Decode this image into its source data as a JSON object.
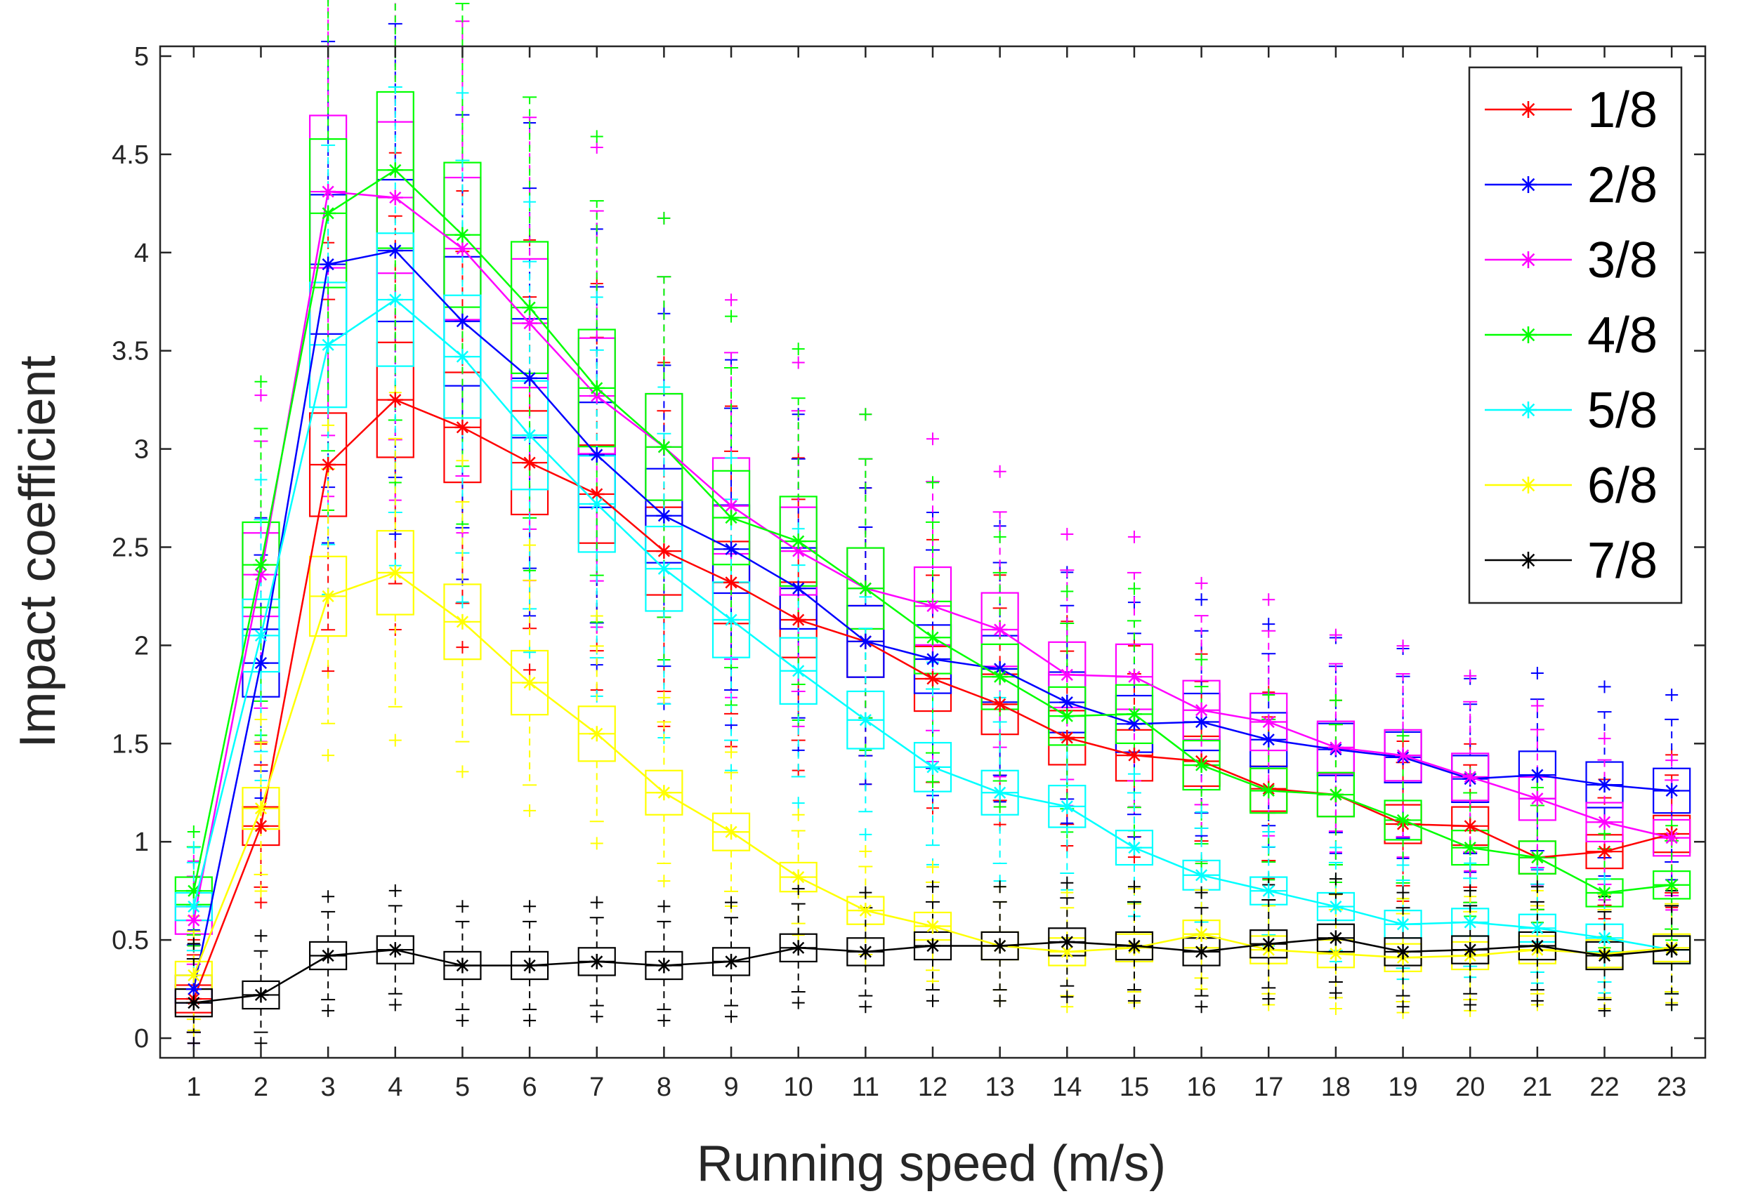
{
  "chart_data": {
    "type": "line",
    "chart_style": "box-plot-overlay",
    "xlabel": "Running speed (m/s)",
    "ylabel": "Impact coefficient",
    "x": [
      1,
      2,
      3,
      4,
      5,
      6,
      7,
      8,
      9,
      10,
      11,
      12,
      13,
      14,
      15,
      16,
      17,
      18,
      19,
      20,
      21,
      22,
      23
    ],
    "xlim": [
      0.5,
      23.5
    ],
    "ylim": [
      -0.1,
      5.05
    ],
    "yticks": [
      0,
      0.5,
      1,
      1.5,
      2,
      2.5,
      3,
      3.5,
      4,
      4.5,
      5
    ],
    "ytick_labels": [
      "0",
      "0.5",
      "1",
      "1.5",
      "2",
      "2.5",
      "3",
      "3.5",
      "4",
      "4.5",
      "5"
    ],
    "xtick_labels": [
      "1",
      "2",
      "3",
      "4",
      "5",
      "6",
      "7",
      "8",
      "9",
      "10",
      "11",
      "12",
      "13",
      "14",
      "15",
      "16",
      "17",
      "18",
      "19",
      "20",
      "21",
      "22",
      "23"
    ],
    "legend_position": "top-right",
    "series": [
      {
        "name": "1/8",
        "color": "#ff0000",
        "values": [
          0.2,
          1.08,
          2.92,
          3.25,
          3.11,
          2.93,
          2.77,
          2.48,
          2.32,
          2.13,
          2.02,
          1.83,
          1.7,
          1.53,
          1.44,
          1.41,
          1.27,
          1.24,
          1.09,
          1.08,
          0.92,
          0.95,
          1.04
        ]
      },
      {
        "name": "2/8",
        "color": "#0000ff",
        "values": [
          0.25,
          1.91,
          3.94,
          4.01,
          3.65,
          3.36,
          2.97,
          2.66,
          2.49,
          2.29,
          2.02,
          1.93,
          1.88,
          1.71,
          1.6,
          1.61,
          1.52,
          1.47,
          1.43,
          1.32,
          1.34,
          1.29,
          1.26
        ]
      },
      {
        "name": "3/8",
        "color": "#ff00ff",
        "values": [
          0.6,
          2.36,
          4.31,
          4.28,
          4.02,
          3.64,
          3.27,
          3.01,
          2.71,
          2.48,
          2.29,
          2.2,
          2.08,
          1.85,
          1.84,
          1.67,
          1.61,
          1.48,
          1.44,
          1.33,
          1.22,
          1.1,
          1.02
        ]
      },
      {
        "name": "4/8",
        "color": "#00ff00",
        "values": [
          0.75,
          2.41,
          4.2,
          4.42,
          4.09,
          3.72,
          3.31,
          3.01,
          2.65,
          2.53,
          2.29,
          2.04,
          1.84,
          1.64,
          1.65,
          1.39,
          1.26,
          1.24,
          1.11,
          0.97,
          0.92,
          0.74,
          0.78
        ]
      },
      {
        "name": "5/8",
        "color": "#00ffff",
        "values": [
          0.67,
          2.05,
          3.53,
          3.76,
          3.47,
          3.07,
          2.72,
          2.39,
          2.13,
          1.87,
          1.62,
          1.38,
          1.25,
          1.18,
          0.97,
          0.83,
          0.75,
          0.67,
          0.58,
          0.59,
          0.56,
          0.51,
          0.45
        ]
      },
      {
        "name": "6/8",
        "color": "#ffff00",
        "values": [
          0.32,
          1.17,
          2.25,
          2.37,
          2.12,
          1.81,
          1.55,
          1.25,
          1.05,
          0.82,
          0.65,
          0.57,
          0.47,
          0.44,
          0.46,
          0.53,
          0.45,
          0.43,
          0.41,
          0.42,
          0.45,
          0.43,
          0.46
        ]
      },
      {
        "name": "7/8",
        "color": "#000000",
        "values": [
          0.18,
          0.22,
          0.42,
          0.45,
          0.37,
          0.37,
          0.39,
          0.37,
          0.39,
          0.46,
          0.44,
          0.47,
          0.47,
          0.49,
          0.47,
          0.44,
          0.48,
          0.51,
          0.44,
          0.45,
          0.47,
          0.42,
          0.45
        ]
      }
    ]
  }
}
